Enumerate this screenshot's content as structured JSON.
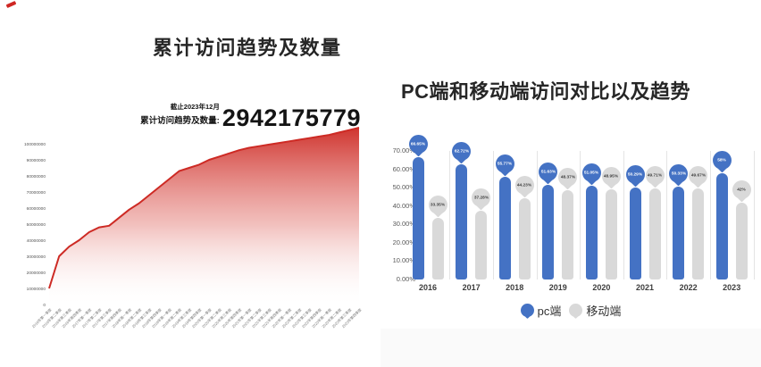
{
  "left_panel": {
    "annotation": {
      "asof": "截止2023年12月",
      "label": "累计访问趋势及数量:",
      "value": "2942175779"
    }
  },
  "right_panel": {
    "legend": [
      {
        "label": "pc端",
        "color": "#4472c4"
      },
      {
        "label": "移动端",
        "color": "#d9d9d9"
      }
    ]
  },
  "colors": {
    "red_line": "#cd2a24",
    "pc_blue": "#4472c4",
    "mobile_gray": "#d9d9d9",
    "axis_text": "#595959",
    "title_text": "#262626"
  },
  "chart_data": [
    {
      "type": "area",
      "title": "累计访问趋势及数量",
      "x": [
        "2016年第一季度",
        "2016年第二季度",
        "2016年第三季度",
        "2016年第四季度",
        "2017年第一季度",
        "2017年第二季度",
        "2017年第三季度",
        "2017年第四季度",
        "2018年第一季度",
        "2018年第二季度",
        "2018年第三季度",
        "2018年第四季度",
        "2019年第一季度",
        "2019年第二季度",
        "2019年第三季度",
        "2019年第四季度",
        "2020年第一季度",
        "2020年第二季度",
        "2020年第三季度",
        "2020年第四季度",
        "2021年第一季度",
        "2021年第二季度",
        "2021年第三季度",
        "2021年第四季度",
        "2022年第一季度",
        "2022年第二季度",
        "2022年第三季度",
        "2022年第四季度",
        "2023年第一季度",
        "2023年第二季度",
        "2023年第三季度",
        "2023年第四季度"
      ],
      "values": [
        10000000,
        30000000,
        36000000,
        40000000,
        45000000,
        48000000,
        49000000,
        54000000,
        59000000,
        63000000,
        68000000,
        73000000,
        78000000,
        83000000,
        85000000,
        87000000,
        90000000,
        92000000,
        94000000,
        96000000,
        97500000,
        98500000,
        99500000,
        100500000,
        101500000,
        102500000,
        103500000,
        104500000,
        105500000,
        107000000,
        108500000,
        110000000
      ],
      "yticks": [
        "100000000",
        "90000000",
        "80000000",
        "70000000",
        "60000000",
        "50000000",
        "40000000",
        "30000000",
        "20000000",
        "10000000",
        "0"
      ],
      "ylim": [
        0,
        100000000
      ],
      "grid": false,
      "line_color": "#cd2a24"
    },
    {
      "type": "bar",
      "title": "PC端和移动端访问对比以及趋势",
      "categories": [
        "2016",
        "2017",
        "2018",
        "2019",
        "2020",
        "2021",
        "2022",
        "2023"
      ],
      "series": [
        {
          "name": "pc端",
          "color": "#4472c4",
          "label_color": "#ffffff",
          "values": [
            66.65,
            62.72,
            55.77,
            51.63,
            51.05,
            50.29,
            50.33,
            58
          ],
          "labels": [
            "66.65%",
            "62.72%",
            "55.77%",
            "51.63%",
            "51.05%",
            "50.29%",
            "50.33%",
            "58%"
          ]
        },
        {
          "name": "移动端",
          "color": "#d9d9d9",
          "label_color": "#3f3f3f",
          "values": [
            33.35,
            37.28,
            44.23,
            48.37,
            48.95,
            49.71,
            49.67,
            42
          ],
          "labels": [
            "33.35%",
            "37.28%",
            "44.23%",
            "48.37%",
            "48.95%",
            "49.71%",
            "49.67%",
            "42%"
          ]
        }
      ],
      "ytick_labels": [
        "0.00%",
        "10.00%",
        "20.00%",
        "30.00%",
        "40.00%",
        "50.00%",
        "60.00%",
        "70.00%"
      ],
      "ylim": [
        0,
        70
      ],
      "grid": false,
      "legend_position": "bottom"
    }
  ]
}
